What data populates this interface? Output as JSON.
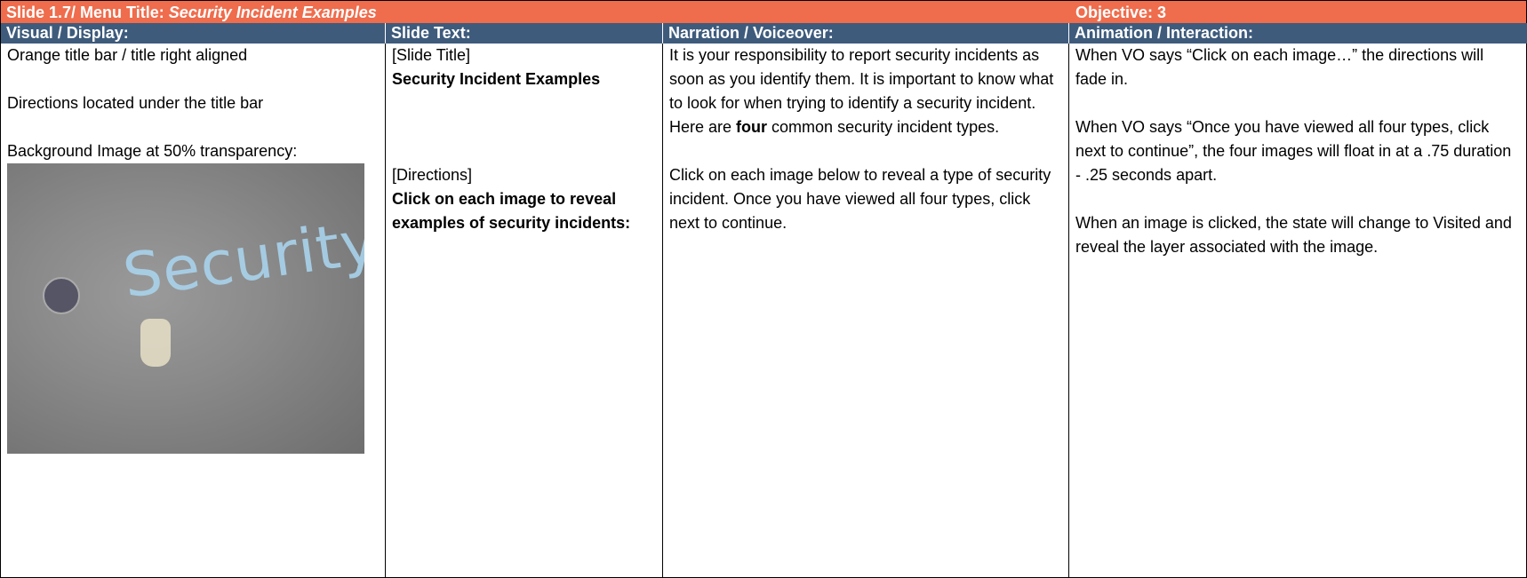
{
  "header": {
    "slide": "Slide 1.7/ Menu Title: ",
    "menu_title": "Security Incident Examples",
    "objective": "Objective: 3"
  },
  "table": {
    "columns": [
      "Visual / Display:",
      "Slide Text:",
      "Narration / Voiceover:",
      "Animation / Interaction:"
    ],
    "image_text": "Security",
    "cells": [
      [
        [
          {
            "text": "Orange title bar / title right aligned"
          }
        ],
        [
          {
            "text": "Directions located under the title bar"
          }
        ],
        [
          {
            "text": "Background Image at 50% transparency:"
          }
        ]
      ],
      [
        [
          {
            "text": "[Slide Title]"
          },
          {
            "text": "Security Incident Examples",
            "bold": true,
            "block": true
          }
        ],
        [
          {
            "text": "[Directions]"
          },
          {
            "text": "Click on each image to reveal examples of security incidents:",
            "bold": true,
            "block": true
          }
        ]
      ],
      [
        [
          {
            "text": "It is your responsibility to report security incidents as soon as you identify them.  It is important to know what to look for when trying to identify a security incident.  Here are "
          },
          {
            "text": "four",
            "bold": true
          },
          {
            "text": " common security incident types."
          }
        ],
        [
          {
            "text": "Click on each image below to reveal a type of security incident.  Once you have viewed all four types, click next to continue."
          }
        ]
      ],
      [
        [
          {
            "text": "When VO says “Click on each image…” the directions will fade in."
          }
        ],
        [
          {
            "text": "When VO says “Once you have viewed all four types, click next to continue”, the four images will float in at a .75 duration - .25 seconds apart."
          }
        ],
        [
          {
            "text": "When an image is clicked, the state will change to Visited and reveal the layer associated with the image."
          }
        ]
      ]
    ]
  }
}
